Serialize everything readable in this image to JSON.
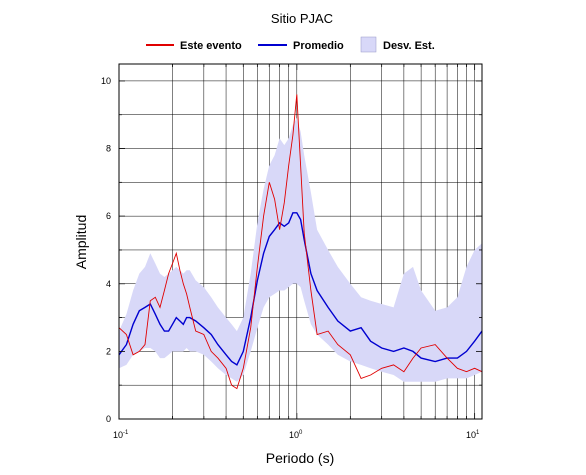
{
  "chart_data": {
    "type": "line",
    "title": "Sitio PJAC",
    "xlabel": "Periodo (s)",
    "ylabel": "Amplitud",
    "xscale": "log",
    "xlim": [
      0.1,
      11
    ],
    "ylim": [
      0,
      10.5
    ],
    "x_tick_labels": [
      "10-1",
      "100",
      "101"
    ],
    "x_tick_label_parts": [
      {
        "base": "10",
        "exp": "-1"
      },
      {
        "base": "10",
        "exp": "0"
      },
      {
        "base": "10",
        "exp": "1"
      }
    ],
    "y_ticks": [
      0,
      2,
      4,
      6,
      8,
      10
    ],
    "grid": true,
    "legend_position": "top",
    "colors": {
      "event": "#e00000",
      "mean": "#0000d0",
      "std": "#d8d8f8"
    },
    "legend": [
      {
        "label": "Este evento",
        "kind": "line",
        "color": "#e00000"
      },
      {
        "label": "Promedio",
        "kind": "line",
        "color": "#0000d0"
      },
      {
        "label": "Desv. Est.",
        "kind": "band",
        "color": "#d8d8f8"
      }
    ],
    "x": [
      0.1,
      0.11,
      0.12,
      0.13,
      0.14,
      0.15,
      0.16,
      0.17,
      0.18,
      0.19,
      0.2,
      0.21,
      0.22,
      0.23,
      0.24,
      0.25,
      0.27,
      0.3,
      0.33,
      0.36,
      0.4,
      0.43,
      0.46,
      0.5,
      0.55,
      0.6,
      0.65,
      0.7,
      0.75,
      0.8,
      0.85,
      0.9,
      0.95,
      1.0,
      1.05,
      1.1,
      1.2,
      1.3,
      1.5,
      1.7,
      2.0,
      2.3,
      2.6,
      3.0,
      3.5,
      4.0,
      4.5,
      5.0,
      6.0,
      7.0,
      8.0,
      9.0,
      10.0,
      11.0
    ],
    "series": [
      {
        "name": "Promedio",
        "values": [
          1.9,
          2.2,
          2.8,
          3.2,
          3.3,
          3.4,
          3.1,
          2.8,
          2.6,
          2.6,
          2.8,
          3.0,
          2.9,
          2.8,
          3.0,
          3.0,
          2.9,
          2.7,
          2.5,
          2.2,
          1.9,
          1.7,
          1.6,
          2.0,
          3.0,
          4.1,
          4.9,
          5.4,
          5.6,
          5.8,
          5.7,
          5.8,
          6.1,
          6.1,
          5.9,
          5.3,
          4.3,
          3.8,
          3.3,
          2.9,
          2.6,
          2.7,
          2.3,
          2.1,
          2.0,
          2.1,
          2.0,
          1.8,
          1.7,
          1.8,
          1.8,
          2.0,
          2.3,
          2.6
        ]
      },
      {
        "name": "Este evento",
        "values": [
          2.7,
          2.5,
          1.9,
          2.0,
          2.2,
          3.5,
          3.6,
          3.3,
          3.8,
          4.3,
          4.6,
          4.9,
          4.4,
          4.0,
          3.7,
          3.3,
          2.6,
          2.5,
          2.0,
          1.8,
          1.5,
          1.0,
          0.9,
          1.5,
          2.7,
          4.5,
          6.0,
          7.0,
          6.5,
          5.6,
          6.4,
          7.5,
          8.4,
          9.6,
          7.5,
          5.5,
          3.8,
          2.5,
          2.6,
          2.2,
          1.9,
          1.2,
          1.3,
          1.5,
          1.6,
          1.4,
          1.8,
          2.1,
          2.2,
          1.8,
          1.5,
          1.4,
          1.5,
          1.4
        ]
      },
      {
        "name": "Desv. Est. (superior)",
        "values": [
          2.6,
          3.1,
          3.8,
          4.3,
          4.5,
          4.9,
          4.6,
          4.3,
          4.2,
          4.3,
          4.4,
          4.5,
          4.4,
          4.3,
          4.4,
          4.4,
          4.1,
          3.9,
          3.6,
          3.3,
          3.0,
          2.8,
          2.6,
          3.0,
          4.3,
          5.8,
          6.8,
          7.5,
          7.8,
          8.3,
          8.1,
          8.3,
          8.7,
          8.9,
          8.5,
          7.8,
          6.7,
          5.6,
          5.0,
          4.5,
          4.0,
          3.6,
          3.5,
          3.4,
          3.3,
          4.3,
          4.5,
          3.8,
          3.2,
          3.3,
          3.6,
          4.5,
          5.0,
          5.2
        ]
      },
      {
        "name": "Desv. Est. (inferior)",
        "values": [
          1.5,
          1.6,
          1.9,
          2.0,
          2.1,
          2.1,
          2.0,
          1.8,
          1.8,
          1.9,
          2.0,
          2.0,
          2.0,
          2.0,
          2.1,
          2.0,
          2.0,
          1.9,
          1.7,
          1.5,
          1.3,
          1.2,
          1.1,
          1.3,
          2.0,
          2.7,
          3.3,
          3.6,
          3.7,
          3.8,
          3.8,
          3.9,
          4.0,
          4.0,
          3.9,
          3.5,
          2.8,
          2.5,
          2.2,
          1.9,
          1.7,
          1.6,
          1.5,
          1.4,
          1.3,
          1.1,
          1.1,
          1.1,
          1.1,
          1.2,
          1.2,
          1.2,
          1.3,
          1.4
        ]
      }
    ]
  }
}
